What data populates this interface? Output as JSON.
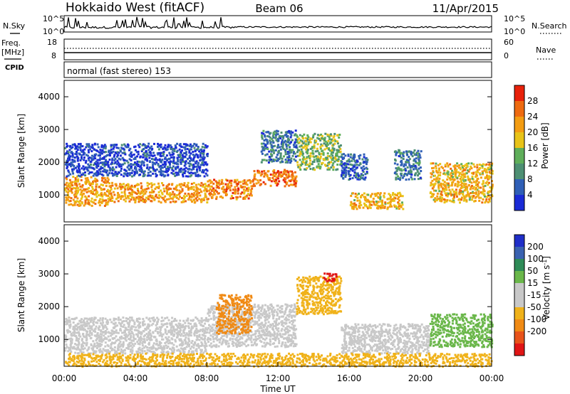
{
  "header": {
    "station": "Hokkaido West (fitACF)",
    "beam": "Beam 06",
    "date": "11/Apr/2015"
  },
  "strips": {
    "nsky_label": "N.Sky",
    "nsky_ticks": [
      "10^5",
      "10^0"
    ],
    "nsearch_label": "N.Search",
    "nsearch_ticks": [
      "10^5",
      "10^0"
    ],
    "freq_label_1": "Freq.",
    "freq_label_2": "[MHz]",
    "freq_ticks": [
      "18",
      "8"
    ],
    "nave_label": "Nave",
    "nave_ticks": [
      "60",
      "0"
    ],
    "cpid_label": "CPID",
    "cpid_text": "normal (fast stereo) 153"
  },
  "x_axis": {
    "label": "Time UT",
    "ticks": [
      "00:00",
      "04:00",
      "08:00",
      "12:00",
      "16:00",
      "20:00",
      "00:00"
    ]
  },
  "colors": {
    "power": [
      "#1a2bd6",
      "#2f5fb6",
      "#4d8f73",
      "#5fae5a",
      "#e8c318",
      "#f39c12",
      "#ee6a10",
      "#e8210a"
    ],
    "velocity": [
      "#1f2ec8",
      "#3a62b0",
      "#2e8b57",
      "#6ab74a",
      "#c8c8c8",
      "#c8c8c8",
      "#f0b21a",
      "#f08a14",
      "#e8531a",
      "#e01515"
    ]
  },
  "chart_data": [
    {
      "type": "heatmap",
      "name": "power",
      "xlabel": "Time UT",
      "ylabel": "Slant Range [km]",
      "xlim": [
        0,
        24
      ],
      "ylim": [
        180,
        4500
      ],
      "yticks": [
        "1000",
        "2000",
        "3000",
        "4000"
      ],
      "colorbar": {
        "label": "Power [dB]",
        "ticks": [
          "4",
          "8",
          "12",
          "16",
          "20",
          "24",
          "28"
        ],
        "range": [
          0,
          32
        ]
      },
      "echo_bands": [
        {
          "t": [
            0,
            2.5
          ],
          "range": [
            700,
            1600
          ],
          "value": 22
        },
        {
          "t": [
            2.5,
            8
          ],
          "range": [
            800,
            1400
          ],
          "value": 22
        },
        {
          "t": [
            8,
            10.5
          ],
          "range": [
            900,
            1500
          ],
          "value": 24
        },
        {
          "t": [
            10.5,
            13
          ],
          "range": [
            1300,
            1800
          ],
          "value": 26
        },
        {
          "t": [
            13,
            15.5
          ],
          "range": [
            1800,
            2900
          ],
          "value": 14
        },
        {
          "t": [
            11,
            13
          ],
          "range": [
            2000,
            3000
          ],
          "value": 8
        },
        {
          "t": [
            15.5,
            17
          ],
          "range": [
            1500,
            2300
          ],
          "value": 6
        },
        {
          "t": [
            16,
            19
          ],
          "range": [
            600,
            1100
          ],
          "value": 20
        },
        {
          "t": [
            18.5,
            20
          ],
          "range": [
            1500,
            2400
          ],
          "value": 8
        },
        {
          "t": [
            20.5,
            24
          ],
          "range": [
            800,
            2000
          ],
          "value": 20
        },
        {
          "t": [
            0,
            8
          ],
          "range": [
            1600,
            2600
          ],
          "value": 4
        }
      ]
    },
    {
      "type": "heatmap",
      "name": "velocity",
      "xlabel": "Time UT",
      "ylabel": "Slant Range [km]",
      "xlim": [
        0,
        24
      ],
      "ylim": [
        180,
        4500
      ],
      "yticks": [
        "1000",
        "2000",
        "3000",
        "4000"
      ],
      "colorbar": {
        "label": "Velocity [m s^-1]",
        "ticks": [
          "200",
          "100",
          "50",
          "15",
          "-15",
          "-50",
          "-100",
          "-200"
        ]
      },
      "echo_bands": [
        {
          "t": [
            0,
            8
          ],
          "range": [
            600,
            1700
          ],
          "value": 0
        },
        {
          "t": [
            8,
            13
          ],
          "range": [
            800,
            2100
          ],
          "value": 0
        },
        {
          "t": [
            8.5,
            10.5
          ],
          "range": [
            1200,
            2400
          ],
          "value": -60
        },
        {
          "t": [
            13,
            15.5
          ],
          "range": [
            1800,
            2950
          ],
          "value": -40
        },
        {
          "t": [
            14.5,
            15.3
          ],
          "range": [
            2800,
            3050
          ],
          "value": -220
        },
        {
          "t": [
            15.5,
            20.5
          ],
          "range": [
            600,
            1500
          ],
          "value": 0
        },
        {
          "t": [
            20.5,
            24
          ],
          "range": [
            800,
            1800
          ],
          "value": 40
        },
        {
          "t": [
            0,
            24
          ],
          "range": [
            200,
            600
          ],
          "value": -20
        }
      ]
    }
  ]
}
